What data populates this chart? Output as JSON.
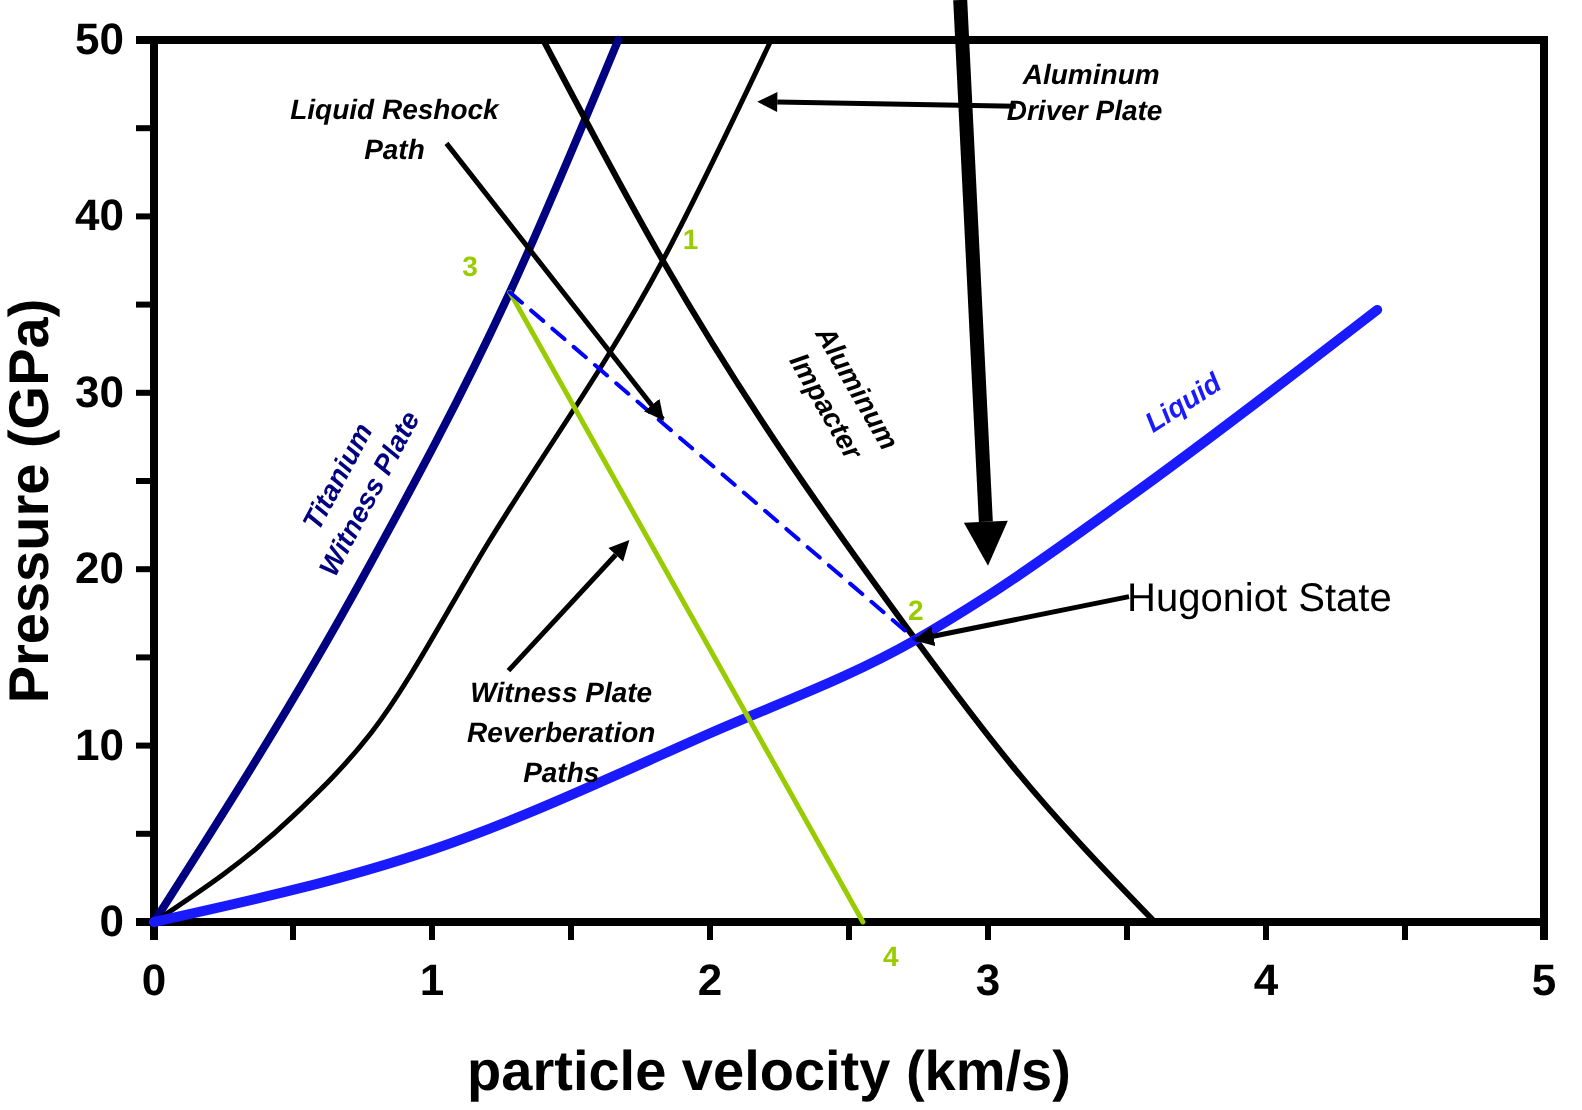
{
  "chart_data": {
    "type": "line",
    "xlabel": "particle velocity (km/s)",
    "ylabel": "Pressure (GPa)",
    "xlim": [
      0,
      5
    ],
    "ylim": [
      0,
      50
    ],
    "xticks": [
      0,
      {
        "value": 0.5,
        "label": null
      },
      1,
      {
        "value": 1.5,
        "label": null
      },
      2,
      {
        "value": 2.5,
        "label": null
      },
      3,
      {
        "value": 3.5,
        "label": null
      },
      4,
      {
        "value": 4.5,
        "label": null
      },
      5
    ],
    "yticks": [
      0,
      {
        "value": 5,
        "label": null
      },
      10,
      {
        "value": 15,
        "label": null
      },
      20,
      {
        "value": 25,
        "label": null
      },
      30,
      {
        "value": 35,
        "label": null
      },
      40,
      {
        "value": 45,
        "label": null
      },
      50
    ],
    "grid": false,
    "marker": "none",
    "series": [
      {
        "name": "Titanium Witness Plate",
        "color": "#000080",
        "x": [
          0,
          0.75,
          1.28,
          1.67
        ],
        "values": [
          0,
          19.5,
          35.7,
          50
        ]
      },
      {
        "name": "Aluminum Driver Plate",
        "color": "#000000",
        "x": [
          0,
          0.5,
          0.78,
          1.21,
          1.83,
          2.22
        ],
        "values": [
          0,
          6,
          10.7,
          21.7,
          37.5,
          50
        ]
      },
      {
        "name": "Aluminum Impacter",
        "color": "#000000",
        "x": [
          1.4,
          1.83,
          2.74,
          3.09,
          3.6
        ],
        "values": [
          50,
          37.5,
          16,
          8.8,
          0
        ]
      },
      {
        "name": "Liquid",
        "color": "#1a1aff",
        "x": [
          0,
          1,
          2,
          2.74,
          3,
          3.5,
          4.4
        ],
        "values": [
          0,
          4.1,
          10.7,
          16,
          18.5,
          24,
          34.7
        ]
      },
      {
        "color": "#99cc00",
        "x": [
          1.28,
          2.55
        ],
        "values": [
          35.7,
          0
        ]
      },
      {
        "color": "#0000ff",
        "line_style": "dashed",
        "x": [
          1.28,
          2.74
        ],
        "values": [
          35.7,
          16
        ]
      }
    ],
    "annotations": [
      {
        "text": "Liquid Reshock Path",
        "x": 1.83,
        "y": 28.5
      },
      "Witness Plate Reverberation Paths",
      {
        "text": "Hugoniot State",
        "x": 2.74,
        "y": 16
      },
      {
        "text": "3",
        "x": 1.28,
        "y": 35.7
      },
      {
        "text": "1",
        "x": 1.83,
        "y": 37.5
      },
      {
        "text": "2",
        "x": 2.74,
        "y": 16
      },
      {
        "text": "4",
        "x": 2.55,
        "y": 0
      }
    ]
  }
}
